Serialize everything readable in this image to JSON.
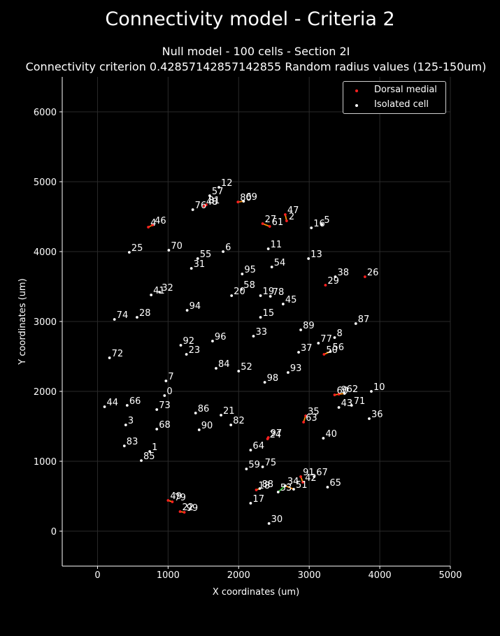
{
  "chart_data": {
    "type": "scatter",
    "title": "Connectivity model - Criteria 2",
    "subtitle_line1": "Null model - 100 cells - Section 2I",
    "subtitle_line2": "Connectivity criterion 0.42857142857142855  Random radius values (125-150um)",
    "xlabel": "X coordinates (um)",
    "ylabel": "Y coordinates (um)",
    "xlim": [
      -500,
      5000
    ],
    "ylim": [
      -500,
      6500
    ],
    "xticks": [
      "0",
      "1000",
      "2000",
      "3000",
      "4000",
      "5000"
    ],
    "yticks": [
      "0",
      "1000",
      "2000",
      "3000",
      "4000",
      "5000",
      "6000"
    ],
    "grid": true,
    "legend_position": "top-right",
    "colors": {
      "background": "#000000",
      "dorsal_medial": "#ff2020",
      "isolated": "#ffffff",
      "connection": "#ff8c00",
      "connection_alt": "#33cc33",
      "grid": "#2a2a2a"
    },
    "series": [
      {
        "name": "Dorsal medial",
        "color": "#ff2020"
      },
      {
        "name": "Isolated cell",
        "color": "#ffffff"
      }
    ],
    "points": [
      {
        "label": "0",
        "x": 950,
        "y": 1940,
        "s": 1
      },
      {
        "label": "1",
        "x": 740,
        "y": 1140,
        "s": 1
      },
      {
        "label": "2",
        "x": 2680,
        "y": 4440,
        "s": 0
      },
      {
        "label": "3",
        "x": 400,
        "y": 1520,
        "s": 1
      },
      {
        "label": "4",
        "x": 720,
        "y": 4350,
        "s": 0
      },
      {
        "label": "5",
        "x": 3180,
        "y": 4390,
        "s": 1
      },
      {
        "label": "6",
        "x": 1780,
        "y": 4000,
        "s": 1
      },
      {
        "label": "7",
        "x": 970,
        "y": 2150,
        "s": 1
      },
      {
        "label": "8",
        "x": 3360,
        "y": 2770,
        "s": 1
      },
      {
        "label": "9",
        "x": 3420,
        "y": 1960,
        "s": 0
      },
      {
        "label": "10",
        "x": 3880,
        "y": 2000,
        "s": 1
      },
      {
        "label": "11",
        "x": 2420,
        "y": 4040,
        "s": 1
      },
      {
        "label": "12",
        "x": 1720,
        "y": 4920,
        "s": 1
      },
      {
        "label": "13",
        "x": 2990,
        "y": 3900,
        "s": 1
      },
      {
        "label": "15",
        "x": 2310,
        "y": 3060,
        "s": 1
      },
      {
        "label": "16",
        "x": 3030,
        "y": 4340,
        "s": 1
      },
      {
        "label": "17",
        "x": 2170,
        "y": 400,
        "s": 1
      },
      {
        "label": "18",
        "x": 2250,
        "y": 590,
        "s": 0
      },
      {
        "label": "19",
        "x": 2310,
        "y": 3370,
        "s": 1
      },
      {
        "label": "20",
        "x": 1900,
        "y": 3370,
        "s": 1
      },
      {
        "label": "21",
        "x": 1750,
        "y": 1660,
        "s": 1
      },
      {
        "label": "22",
        "x": 1170,
        "y": 280,
        "s": 0
      },
      {
        "label": "23",
        "x": 1260,
        "y": 2530,
        "s": 1
      },
      {
        "label": "24",
        "x": 2410,
        "y": 1320,
        "s": 0
      },
      {
        "label": "25",
        "x": 450,
        "y": 3990,
        "s": 1
      },
      {
        "label": "26",
        "x": 3790,
        "y": 3640,
        "s": 0
      },
      {
        "label": "27",
        "x": 2340,
        "y": 4400,
        "s": 0
      },
      {
        "label": "28",
        "x": 560,
        "y": 3060,
        "s": 1
      },
      {
        "label": "29",
        "x": 3230,
        "y": 3520,
        "s": 0
      },
      {
        "label": "30",
        "x": 2430,
        "y": 110,
        "s": 1
      },
      {
        "label": "31",
        "x": 1330,
        "y": 3760,
        "s": 1
      },
      {
        "label": "32",
        "x": 880,
        "y": 3420,
        "s": 1
      },
      {
        "label": "33",
        "x": 2210,
        "y": 2790,
        "s": 1
      },
      {
        "label": "34",
        "x": 2660,
        "y": 650,
        "s": 1
      },
      {
        "label": "35",
        "x": 2950,
        "y": 1650,
        "s": 0
      },
      {
        "label": "36",
        "x": 3850,
        "y": 1610,
        "s": 1
      },
      {
        "label": "37",
        "x": 2850,
        "y": 2560,
        "s": 1
      },
      {
        "label": "38",
        "x": 3370,
        "y": 3640,
        "s": 1
      },
      {
        "label": "40",
        "x": 3200,
        "y": 1330,
        "s": 1
      },
      {
        "label": "41",
        "x": 760,
        "y": 3380,
        "s": 1
      },
      {
        "label": "42",
        "x": 2910,
        "y": 700,
        "s": 0
      },
      {
        "label": "43",
        "x": 3420,
        "y": 1770,
        "s": 1
      },
      {
        "label": "44",
        "x": 100,
        "y": 1780,
        "s": 1
      },
      {
        "label": "45",
        "x": 2630,
        "y": 3250,
        "s": 1
      },
      {
        "label": "46",
        "x": 780,
        "y": 4380,
        "s": 0
      },
      {
        "label": "47",
        "x": 2660,
        "y": 4530,
        "s": 0
      },
      {
        "label": "48",
        "x": 1510,
        "y": 4650,
        "s": 0
      },
      {
        "label": "49",
        "x": 1000,
        "y": 440,
        "s": 0
      },
      {
        "label": "51",
        "x": 2780,
        "y": 600,
        "s": 1
      },
      {
        "label": "52",
        "x": 2000,
        "y": 2290,
        "s": 1
      },
      {
        "label": "53",
        "x": 2560,
        "y": 560,
        "s": 1
      },
      {
        "label": "54",
        "x": 2470,
        "y": 3780,
        "s": 1
      },
      {
        "label": "55",
        "x": 1420,
        "y": 3900,
        "s": 1
      },
      {
        "label": "56",
        "x": 3300,
        "y": 2570,
        "s": 1
      },
      {
        "label": "57",
        "x": 1590,
        "y": 4800,
        "s": 1
      },
      {
        "label": "58",
        "x": 2040,
        "y": 3460,
        "s": 1
      },
      {
        "label": "59",
        "x": 2110,
        "y": 890,
        "s": 1
      },
      {
        "label": "60",
        "x": 3360,
        "y": 1950,
        "s": 0
      },
      {
        "label": "61",
        "x": 2440,
        "y": 4360,
        "s": 0
      },
      {
        "label": "62",
        "x": 3500,
        "y": 1970,
        "s": 1
      },
      {
        "label": "63",
        "x": 2920,
        "y": 1560,
        "s": 0
      },
      {
        "label": "64",
        "x": 2170,
        "y": 1160,
        "s": 1
      },
      {
        "label": "65",
        "x": 3260,
        "y": 630,
        "s": 1
      },
      {
        "label": "66",
        "x": 420,
        "y": 1800,
        "s": 1
      },
      {
        "label": "67",
        "x": 3070,
        "y": 780,
        "s": 1
      },
      {
        "label": "68",
        "x": 840,
        "y": 1460,
        "s": 1
      },
      {
        "label": "69",
        "x": 2070,
        "y": 4720,
        "s": 1
      },
      {
        "label": "70",
        "x": 1010,
        "y": 4020,
        "s": 1
      },
      {
        "label": "71",
        "x": 3600,
        "y": 1800,
        "s": 1
      },
      {
        "label": "72",
        "x": 170,
        "y": 2480,
        "s": 1
      },
      {
        "label": "73",
        "x": 840,
        "y": 1740,
        "s": 1
      },
      {
        "label": "74",
        "x": 240,
        "y": 3030,
        "s": 1
      },
      {
        "label": "75",
        "x": 2340,
        "y": 920,
        "s": 1
      },
      {
        "label": "76",
        "x": 1350,
        "y": 4600,
        "s": 1
      },
      {
        "label": "77",
        "x": 3130,
        "y": 2690,
        "s": 1
      },
      {
        "label": "78",
        "x": 2450,
        "y": 3360,
        "s": 1
      },
      {
        "label": "79",
        "x": 1060,
        "y": 420,
        "s": 0
      },
      {
        "label": "80",
        "x": 1990,
        "y": 4710,
        "s": 0
      },
      {
        "label": "81",
        "x": 1540,
        "y": 4670,
        "s": 0
      },
      {
        "label": "82",
        "x": 1890,
        "y": 1520,
        "s": 1
      },
      {
        "label": "83",
        "x": 380,
        "y": 1220,
        "s": 1
      },
      {
        "label": "84",
        "x": 1680,
        "y": 2330,
        "s": 1
      },
      {
        "label": "85",
        "x": 620,
        "y": 1010,
        "s": 1
      },
      {
        "label": "86",
        "x": 1390,
        "y": 1690,
        "s": 1
      },
      {
        "label": "87",
        "x": 3660,
        "y": 2970,
        "s": 1
      },
      {
        "label": "88",
        "x": 2300,
        "y": 610,
        "s": 1
      },
      {
        "label": "89",
        "x": 2880,
        "y": 2880,
        "s": 1
      },
      {
        "label": "90",
        "x": 1440,
        "y": 1450,
        "s": 1
      },
      {
        "label": "91",
        "x": 2880,
        "y": 780,
        "s": 0
      },
      {
        "label": "92",
        "x": 1180,
        "y": 2660,
        "s": 1
      },
      {
        "label": "93",
        "x": 2700,
        "y": 2270,
        "s": 1
      },
      {
        "label": "94",
        "x": 1270,
        "y": 3160,
        "s": 1
      },
      {
        "label": "95",
        "x": 2050,
        "y": 3680,
        "s": 1
      },
      {
        "label": "96",
        "x": 1630,
        "y": 2720,
        "s": 1
      },
      {
        "label": "97",
        "x": 2420,
        "y": 1340,
        "s": 0
      },
      {
        "label": "98",
        "x": 2370,
        "y": 2130,
        "s": 1
      },
      {
        "label": "99",
        "x": 1230,
        "y": 270,
        "s": 0
      },
      {
        "label": "50",
        "x": 3210,
        "y": 2530,
        "s": 0
      }
    ],
    "connections": [
      {
        "from": "2",
        "to": "47",
        "color": "#ff8c00"
      },
      {
        "from": "27",
        "to": "61",
        "color": "#ff8c00"
      },
      {
        "from": "4",
        "to": "46",
        "color": "#ff8c00"
      },
      {
        "from": "48",
        "to": "81",
        "color": "#ff8c00"
      },
      {
        "from": "80",
        "to": "69",
        "color": "#ff8c00"
      },
      {
        "from": "35",
        "to": "63",
        "color": "#ff8c00"
      },
      {
        "from": "24",
        "to": "97",
        "color": "#ff8c00"
      },
      {
        "from": "60",
        "to": "9",
        "color": "#ff8c00"
      },
      {
        "from": "9",
        "to": "62",
        "color": "#ff8c00"
      },
      {
        "from": "49",
        "to": "79",
        "color": "#ff8c00"
      },
      {
        "from": "22",
        "to": "99",
        "color": "#ff8c00"
      },
      {
        "from": "18",
        "to": "88",
        "color": "#ff8c00"
      },
      {
        "from": "91",
        "to": "42",
        "color": "#ff8c00"
      },
      {
        "from": "34",
        "to": "53",
        "color": "#33cc33"
      },
      {
        "from": "34",
        "to": "51",
        "color": "#ff8c00"
      },
      {
        "from": "50",
        "to": "56",
        "color": "#ff8c00"
      }
    ]
  }
}
